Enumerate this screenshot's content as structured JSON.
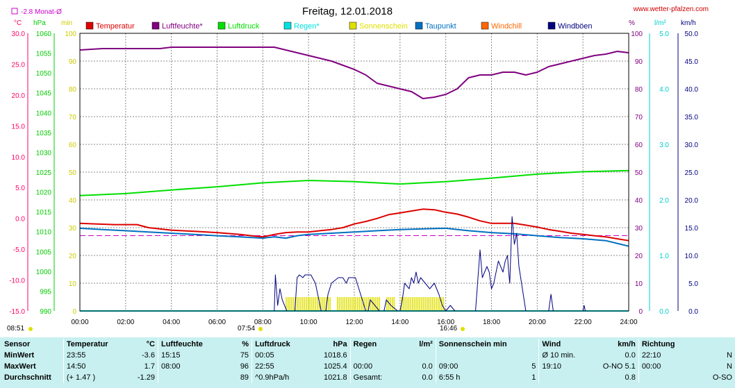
{
  "header": {
    "title": "Freitag, 12.01.2018",
    "site": "www.wetter-pfalzen.com",
    "month_avg": "-2.8 Monat-Ø"
  },
  "axes": {
    "temp_unit": "°C",
    "pressure_unit": "hPa",
    "minutes_unit": "min",
    "humidity_unit": "%",
    "rain_unit": "l/m²",
    "wind_unit": "km/h",
    "temp_ticks": [
      "30.0",
      "25.0",
      "20.0",
      "15.0",
      "10.0",
      "5.0",
      "0.0",
      "-5.0",
      "-10.0",
      "-15.0"
    ],
    "pressure_ticks": [
      "1060",
      "1055",
      "1050",
      "1045",
      "1040",
      "1035",
      "1030",
      "1025",
      "1020",
      "1015",
      "1010",
      "1005",
      "1000",
      "995",
      "990"
    ],
    "minutes_ticks": [
      "100",
      "90",
      "80",
      "70",
      "60",
      "50",
      "40",
      "30",
      "20",
      "10",
      "0"
    ],
    "humidity_ticks": [
      "100",
      "90",
      "80",
      "70",
      "60",
      "50",
      "40",
      "30",
      "20",
      "10",
      "0"
    ],
    "rain_ticks": [
      "5.0",
      "4.0",
      "3.0",
      "2.0",
      "1.0",
      "0.0"
    ],
    "wind_ticks": [
      "50.0",
      "45.0",
      "40.0",
      "35.0",
      "30.0",
      "25.0",
      "20.0",
      "15.0",
      "10.0",
      "5.0",
      "0.0"
    ],
    "time_ticks": [
      "00:00",
      "02:00",
      "04:00",
      "06:00",
      "08:00",
      "10:00",
      "12:00",
      "14:00",
      "16:00",
      "18:00",
      "20:00",
      "22:00",
      "24:00"
    ],
    "sunrise_ref": "08:51",
    "sunrise": "07:54",
    "sunset": "16:46"
  },
  "legend": [
    {
      "label": "Temperatur",
      "color": "#dd0000"
    },
    {
      "label": "Luftfeuchte*",
      "color": "#800080"
    },
    {
      "label": "Luftdruck",
      "color": "#00e000"
    },
    {
      "label": "Regen*",
      "color": "#00e0e0"
    },
    {
      "label": "Sonnenschein",
      "color": "#e0e000"
    },
    {
      "label": "Taupunkt",
      "color": "#0070c0"
    },
    {
      "label": "Windchill",
      "color": "#ff6600"
    },
    {
      "label": "Windböen",
      "color": "#000080"
    }
  ],
  "chart_data": {
    "type": "line",
    "x_range": [
      0,
      24
    ],
    "month_avg_temp": -2.8,
    "series": [
      {
        "name": "Temperatur",
        "axis": "temp",
        "color": "#dd0000",
        "x": [
          0,
          1.5,
          2.5,
          3,
          4,
          5,
          6,
          7,
          7.5,
          8,
          8.5,
          9,
          9.5,
          10,
          10.5,
          11,
          11.5,
          12,
          12.5,
          13,
          13.5,
          14,
          14.5,
          15,
          15.5,
          16,
          16.5,
          17,
          17.5,
          18,
          18.5,
          19,
          19.5,
          20,
          20.5,
          21,
          21.5,
          22,
          22.5,
          23,
          23.5,
          24
        ],
        "y": [
          -0.8,
          -1.0,
          -1.0,
          -1.5,
          -1.9,
          -2.1,
          -2.3,
          -2.6,
          -2.8,
          -3.0,
          -2.6,
          -2.3,
          -2.2,
          -2.2,
          -2.0,
          -1.8,
          -1.5,
          -0.9,
          -0.5,
          0.0,
          0.6,
          0.9,
          1.2,
          1.5,
          1.4,
          1.0,
          0.7,
          0.2,
          -0.4,
          -0.8,
          -0.8,
          -0.8,
          -1.1,
          -1.4,
          -1.8,
          -2.1,
          -2.4,
          -2.6,
          -2.8,
          -3.0,
          -3.3,
          -3.6
        ]
      },
      {
        "name": "Luftfeuchte*",
        "axis": "humidity",
        "color": "#800080",
        "x": [
          0,
          1,
          2,
          3,
          3.5,
          4,
          5,
          6,
          7,
          8,
          8.5,
          9,
          9.5,
          10,
          10.5,
          11,
          11.5,
          12,
          12.5,
          13,
          13.5,
          14,
          14.5,
          15,
          15.5,
          16,
          16.5,
          17,
          17.5,
          18,
          18.5,
          19,
          19.5,
          20,
          20.5,
          21,
          21.5,
          22,
          22.5,
          23,
          23.5,
          24
        ],
        "y": [
          94,
          94.5,
          94.5,
          94.5,
          94.5,
          95,
          95,
          95,
          95,
          95,
          95,
          94,
          93,
          92,
          91,
          90,
          88.5,
          87,
          85,
          82,
          81,
          80,
          79,
          76.5,
          77,
          78,
          80,
          84,
          85,
          85,
          86,
          86,
          85,
          86,
          88,
          89,
          90,
          91,
          92,
          92.5,
          93.5,
          93
        ]
      },
      {
        "name": "Luftdruck",
        "axis": "pressure",
        "color": "#00e000",
        "x": [
          0,
          2,
          4,
          6,
          8,
          10,
          12,
          14,
          15,
          16,
          18,
          20,
          22,
          24
        ],
        "y": [
          1019.1,
          1019.6,
          1020.5,
          1021.3,
          1022.3,
          1022.9,
          1022.6,
          1022.0,
          1022.3,
          1022.6,
          1023.5,
          1024.5,
          1025.1,
          1025.4
        ]
      },
      {
        "name": "Regen*",
        "axis": "rain",
        "color": "#00e0e0",
        "x": [
          0,
          24
        ],
        "y": [
          0,
          0
        ]
      },
      {
        "name": "Taupunkt",
        "axis": "temp",
        "color": "#0070c0",
        "x": [
          0,
          1,
          2,
          3,
          4,
          5,
          6,
          7,
          8,
          8.5,
          9,
          9.5,
          10,
          11,
          12,
          13,
          14,
          15,
          16,
          17,
          18,
          19,
          20,
          21,
          22,
          23,
          24
        ],
        "y": [
          -1.6,
          -1.8,
          -2.0,
          -2.2,
          -2.4,
          -2.6,
          -2.8,
          -3.0,
          -3.2,
          -3.0,
          -3.2,
          -2.8,
          -2.6,
          -2.4,
          -2.2,
          -2.0,
          -1.8,
          -1.7,
          -1.6,
          -2.0,
          -2.3,
          -2.5,
          -2.8,
          -3.1,
          -3.3,
          -3.6,
          -4.5
        ]
      },
      {
        "name": "Windböen",
        "axis": "wind",
        "color": "#000080",
        "x": [
          0,
          8.5,
          8.55,
          8.65,
          8.75,
          8.85,
          9.05,
          9.4,
          9.5,
          9.6,
          9.75,
          9.85,
          10.1,
          10.3,
          10.55,
          10.75,
          10.85,
          11.0,
          11.3,
          11.5,
          11.65,
          11.75,
          11.85,
          12.05,
          12.5,
          12.6,
          12.7,
          12.9,
          13.1,
          13.3,
          13.4,
          13.6,
          13.9,
          14.0,
          14.1,
          14.2,
          14.4,
          14.5,
          14.6,
          14.7,
          14.8,
          14.9,
          15.1,
          15.3,
          15.5,
          15.7,
          15.85,
          16.0,
          16.2,
          16.4,
          16.5,
          17.3,
          17.5,
          17.6,
          17.8,
          17.9,
          18.0,
          18.1,
          18.3,
          18.5,
          18.6,
          18.7,
          18.75,
          18.8,
          18.9,
          19.0,
          19.1,
          19.2,
          19.5,
          19.6,
          19.75,
          19.8,
          20.5,
          20.6,
          20.7,
          20.75,
          20.8,
          22.0,
          22.05,
          22.1,
          24
        ],
        "y": [
          0,
          0,
          6.5,
          1,
          4,
          2,
          0,
          0,
          6,
          6.5,
          6,
          6.5,
          6.5,
          5,
          0,
          0,
          3,
          5,
          6,
          6,
          5,
          6,
          6,
          6,
          0,
          0,
          2,
          1,
          0,
          0,
          2,
          1,
          0,
          0,
          2,
          5,
          4,
          6,
          5,
          7,
          5,
          6,
          5,
          4,
          5,
          3,
          1,
          0,
          1,
          0,
          0,
          0,
          11,
          6,
          8,
          7,
          4,
          5,
          9,
          7,
          9,
          10,
          7,
          5,
          17,
          12,
          14,
          8,
          0,
          0,
          0,
          0,
          0,
          3,
          0,
          0,
          0,
          0,
          1,
          0,
          0
        ]
      },
      {
        "name": "Sonnenschein",
        "axis": "minutes",
        "type": "bar",
        "color": "#e0e000",
        "x_start": 9.0,
        "x_end": 15.9,
        "value": 5,
        "gaps": [
          [
            11.0,
            11.2
          ],
          [
            13.1,
            13.4
          ],
          [
            13.8,
            14.0
          ]
        ]
      }
    ]
  },
  "stats": {
    "rows": [
      [
        "Sensor",
        "Temperatur",
        "°C",
        "Luftfeuchte",
        "%",
        "Luftdruck",
        "hPa",
        "Regen",
        "l/m²",
        "Sonnenschein min",
        "",
        "Wind",
        "km/h",
        "Richtung",
        ""
      ],
      [
        "MinWert",
        "23:55",
        "-3.6",
        "15:15",
        "75",
        "00:05",
        "1018.6",
        "",
        "",
        "",
        "",
        "Ø 10 min.",
        "0.0",
        "22:10",
        "N"
      ],
      [
        "MaxWert",
        "14:50",
        "1.7",
        "08:00",
        "96",
        "22:55",
        "1025.4",
        "00:00",
        "0.0",
        "09:00",
        "5",
        "19:10",
        "O-NO 5.1",
        "00:00",
        "N"
      ],
      [
        "Durchschnitt",
        "(+ 1.47 )",
        "-1.29",
        "",
        "89",
        "^0.9hPa/h",
        "1021.8",
        "Gesamt:",
        "0.0",
        "6:55 h",
        "1",
        "",
        "0.8",
        "",
        "O-SO"
      ]
    ]
  }
}
